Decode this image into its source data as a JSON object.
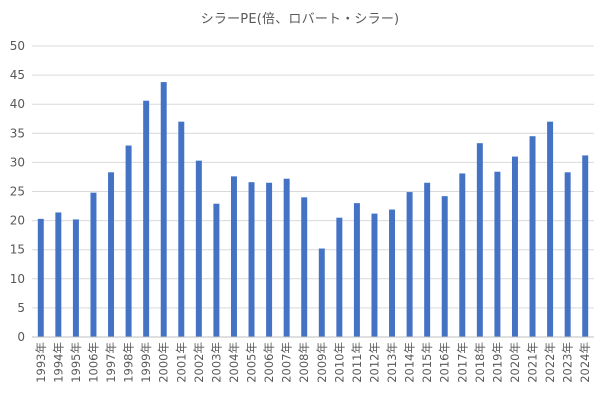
{
  "chart_data": {
    "type": "bar",
    "title": "シラーPE(倍、ロバート・シラー)",
    "xlabel": "",
    "ylabel": "",
    "ylim": [
      0,
      50
    ],
    "yticks": [
      0,
      5,
      10,
      15,
      20,
      25,
      30,
      35,
      40,
      45,
      50
    ],
    "grid": true,
    "legend": "none",
    "bar_color": "#4472c4",
    "categories": [
      "1993年",
      "1994年",
      "1995年",
      "1006年",
      "1997年",
      "1998年",
      "1999年",
      "2000年",
      "2001年",
      "2002年",
      "2003年",
      "2004年",
      "2005年",
      "2006年",
      "2007年",
      "2008年",
      "2009年",
      "2010年",
      "2011年",
      "2012年",
      "2013年",
      "2014年",
      "2015年",
      "2016年",
      "2017年",
      "2018年",
      "2019年",
      "2020年",
      "2021年",
      "2022年",
      "2023年",
      "2024年"
    ],
    "values": [
      20.3,
      21.4,
      20.2,
      24.8,
      28.3,
      32.9,
      40.6,
      43.8,
      37.0,
      30.3,
      22.9,
      27.6,
      26.6,
      26.5,
      27.2,
      24.0,
      15.2,
      20.5,
      23.0,
      21.2,
      21.9,
      24.9,
      26.5,
      24.2,
      28.1,
      33.3,
      28.4,
      31.0,
      34.5,
      37.0,
      28.3,
      31.2
    ]
  }
}
